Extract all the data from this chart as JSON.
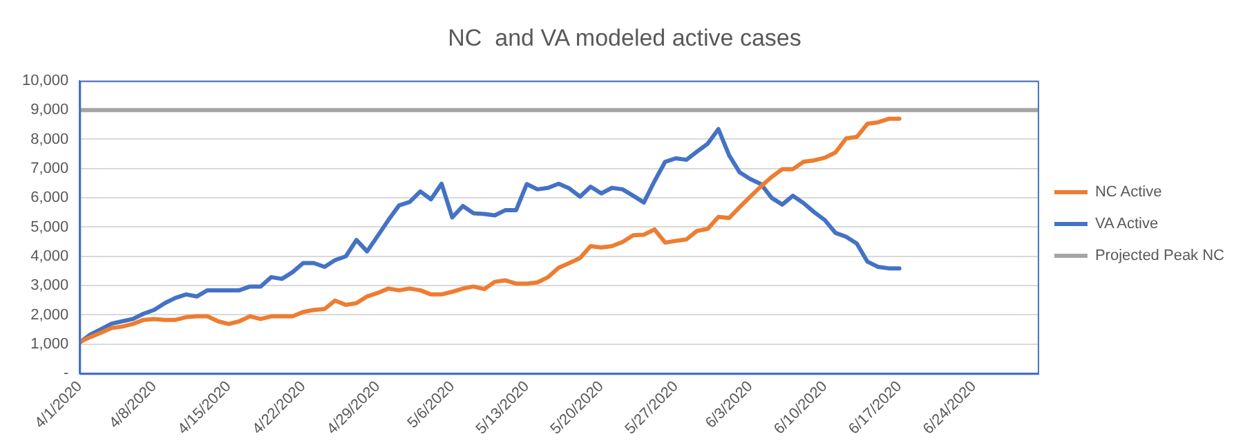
{
  "chart_data": {
    "type": "line",
    "title": "NC  and VA modeled active cases",
    "x": [
      "2020-04-01",
      "2020-04-02",
      "2020-04-03",
      "2020-04-04",
      "2020-04-05",
      "2020-04-06",
      "2020-04-07",
      "2020-04-08",
      "2020-04-09",
      "2020-04-10",
      "2020-04-11",
      "2020-04-12",
      "2020-04-13",
      "2020-04-14",
      "2020-04-15",
      "2020-04-16",
      "2020-04-17",
      "2020-04-18",
      "2020-04-19",
      "2020-04-20",
      "2020-04-21",
      "2020-04-22",
      "2020-04-23",
      "2020-04-24",
      "2020-04-25",
      "2020-04-26",
      "2020-04-27",
      "2020-04-28",
      "2020-04-29",
      "2020-04-30",
      "2020-05-01",
      "2020-05-02",
      "2020-05-03",
      "2020-05-04",
      "2020-05-05",
      "2020-05-06",
      "2020-05-07",
      "2020-05-08",
      "2020-05-09",
      "2020-05-10",
      "2020-05-11",
      "2020-05-12",
      "2020-05-13",
      "2020-05-14",
      "2020-05-15",
      "2020-05-16",
      "2020-05-17",
      "2020-05-18",
      "2020-05-19",
      "2020-05-20",
      "2020-05-21",
      "2020-05-22",
      "2020-05-23",
      "2020-05-24",
      "2020-05-25",
      "2020-05-26",
      "2020-05-27",
      "2020-05-28",
      "2020-05-29",
      "2020-05-30",
      "2020-05-31",
      "2020-06-01",
      "2020-06-02",
      "2020-06-03",
      "2020-06-04",
      "2020-06-05",
      "2020-06-06",
      "2020-06-07",
      "2020-06-08",
      "2020-06-09",
      "2020-06-10",
      "2020-06-11",
      "2020-06-12",
      "2020-06-13",
      "2020-06-14",
      "2020-06-15",
      "2020-06-16",
      "2020-06-17"
    ],
    "series": [
      {
        "name": "NC Active",
        "color": "#ed7d31",
        "values": [
          1070,
          1240,
          1390,
          1550,
          1600,
          1690,
          1830,
          1860,
          1830,
          1830,
          1920,
          1950,
          1950,
          1780,
          1690,
          1780,
          1950,
          1860,
          1950,
          1950,
          1950,
          2100,
          2170,
          2200,
          2490,
          2340,
          2400,
          2630,
          2750,
          2900,
          2840,
          2900,
          2840,
          2700,
          2700,
          2790,
          2900,
          2970,
          2880,
          3130,
          3180,
          3070,
          3070,
          3110,
          3290,
          3610,
          3770,
          3940,
          4350,
          4300,
          4350,
          4490,
          4720,
          4740,
          4920,
          4470,
          4530,
          4580,
          4870,
          4940,
          5350,
          5310,
          5680,
          6040,
          6390,
          6710,
          6980,
          6980,
          7230,
          7280,
          7370,
          7550,
          8030,
          8080,
          8530,
          8580,
          8700,
          8700
        ]
      },
      {
        "name": "VA Active",
        "color": "#4472c4",
        "values": [
          1050,
          1330,
          1510,
          1700,
          1780,
          1860,
          2040,
          2170,
          2400,
          2580,
          2700,
          2630,
          2840,
          2840,
          2840,
          2840,
          2970,
          2970,
          3290,
          3230,
          3460,
          3770,
          3770,
          3640,
          3870,
          4000,
          4560,
          4170,
          4700,
          5240,
          5740,
          5860,
          6220,
          5950,
          6480,
          5330,
          5720,
          5470,
          5450,
          5400,
          5580,
          5580,
          6470,
          6290,
          6340,
          6480,
          6320,
          6040,
          6380,
          6150,
          6340,
          6290,
          6070,
          5840,
          6570,
          7230,
          7350,
          7300,
          7580,
          7850,
          8350,
          7460,
          6870,
          6640,
          6470,
          6000,
          5770,
          6070,
          5820,
          5510,
          5240,
          4800,
          4670,
          4440,
          3820,
          3640,
          3590,
          3590
        ]
      },
      {
        "name": "Projected Peak NC",
        "color": "#a5a5a5",
        "x": [
          "2020-04-01",
          "2020-06-30"
        ],
        "values": [
          9000,
          9000
        ]
      }
    ],
    "xlim": [
      "2020-04-01",
      "2020-06-30"
    ],
    "xticks": [
      {
        "value": "2020-04-01",
        "label": "4/1/2020"
      },
      {
        "value": "2020-04-08",
        "label": "4/8/2020"
      },
      {
        "value": "2020-04-15",
        "label": "4/15/2020"
      },
      {
        "value": "2020-04-22",
        "label": "4/22/2020"
      },
      {
        "value": "2020-04-29",
        "label": "4/29/2020"
      },
      {
        "value": "2020-05-06",
        "label": "5/6/2020"
      },
      {
        "value": "2020-05-13",
        "label": "5/13/2020"
      },
      {
        "value": "2020-05-20",
        "label": "5/20/2020"
      },
      {
        "value": "2020-05-27",
        "label": "5/27/2020"
      },
      {
        "value": "2020-06-03",
        "label": "6/3/2020"
      },
      {
        "value": "2020-06-10",
        "label": "6/10/2020"
      },
      {
        "value": "2020-06-17",
        "label": "6/17/2020"
      },
      {
        "value": "2020-06-24",
        "label": "6/24/2020"
      }
    ],
    "ylim": [
      0,
      10000
    ],
    "yticks": [
      {
        "value": 0,
        "label": "-"
      },
      {
        "value": 1000,
        "label": "1,000"
      },
      {
        "value": 2000,
        "label": "2,000"
      },
      {
        "value": 3000,
        "label": "3,000"
      },
      {
        "value": 4000,
        "label": "4,000"
      },
      {
        "value": 5000,
        "label": "5,000"
      },
      {
        "value": 6000,
        "label": "6,000"
      },
      {
        "value": 7000,
        "label": "7,000"
      },
      {
        "value": 8000,
        "label": "8,000"
      },
      {
        "value": 9000,
        "label": "9,000"
      },
      {
        "value": 10000,
        "label": "10,000"
      }
    ],
    "grid": "y",
    "legend": "right",
    "marker": "none",
    "line_style": "solid"
  }
}
